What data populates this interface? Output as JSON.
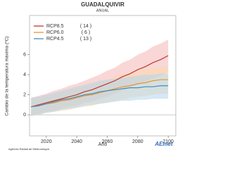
{
  "chart_data": {
    "type": "line",
    "title": "GUADALQUIVIR",
    "subtitle": "ANUAL",
    "x_label": "Año",
    "y_label": "Cambio de la temperatura máxima (ºC)",
    "x": [
      2010,
      2015,
      2020,
      2025,
      2030,
      2035,
      2040,
      2045,
      2050,
      2055,
      2060,
      2065,
      2070,
      2075,
      2080,
      2085,
      2090,
      2095,
      2100
    ],
    "series": [
      {
        "name": "RCP8.5",
        "count_label": "( 14 )",
        "color": "#c0392b",
        "band_color": "#f4b6b6",
        "values": [
          0.8,
          1.0,
          1.2,
          1.4,
          1.6,
          1.8,
          2.0,
          2.3,
          2.5,
          2.8,
          3.1,
          3.4,
          3.8,
          4.1,
          4.5,
          4.8,
          5.2,
          5.5,
          5.9
        ],
        "low": [
          -0.1,
          0.1,
          0.3,
          0.4,
          0.6,
          0.8,
          0.9,
          1.2,
          1.3,
          1.6,
          1.8,
          2.1,
          2.4,
          2.7,
          3.0,
          3.3,
          3.6,
          3.9,
          4.2
        ],
        "high": [
          1.7,
          1.9,
          2.1,
          2.4,
          2.6,
          2.9,
          3.1,
          3.4,
          3.7,
          4.0,
          4.4,
          4.7,
          5.2,
          5.5,
          6.0,
          6.3,
          6.8,
          7.1,
          7.5
        ]
      },
      {
        "name": "RCP6.0",
        "count_label": "( 6 )",
        "color": "#e6962e",
        "band_color": "#f9d9a8",
        "values": [
          0.8,
          0.9,
          1.1,
          1.2,
          1.4,
          1.5,
          1.7,
          1.9,
          2.0,
          2.2,
          2.4,
          2.6,
          2.8,
          2.9,
          3.1,
          3.2,
          3.4,
          3.5,
          3.5
        ],
        "low": [
          -0.1,
          0.0,
          0.2,
          0.3,
          0.4,
          0.5,
          0.7,
          0.8,
          0.9,
          1.1,
          1.2,
          1.4,
          1.5,
          1.7,
          1.8,
          1.9,
          2.0,
          2.1,
          2.1
        ],
        "high": [
          1.7,
          1.8,
          2.0,
          2.1,
          2.3,
          2.5,
          2.7,
          2.9,
          3.1,
          3.3,
          3.5,
          3.8,
          4.0,
          4.1,
          4.3,
          4.5,
          4.6,
          4.7,
          4.8
        ]
      },
      {
        "name": "RCP4.5",
        "count_label": "( 13 )",
        "color": "#3f8fc0",
        "band_color": "#b5d6ec",
        "values": [
          0.8,
          0.9,
          1.1,
          1.3,
          1.5,
          1.6,
          1.8,
          2.0,
          2.1,
          2.3,
          2.4,
          2.5,
          2.6,
          2.7,
          2.7,
          2.8,
          2.8,
          2.9,
          2.9
        ],
        "low": [
          -0.1,
          0.0,
          0.2,
          0.3,
          0.5,
          0.6,
          0.7,
          0.9,
          1.0,
          1.1,
          1.2,
          1.3,
          1.4,
          1.4,
          1.5,
          1.5,
          1.6,
          1.6,
          1.6
        ],
        "high": [
          1.7,
          1.8,
          2.0,
          2.2,
          2.4,
          2.6,
          2.8,
          3.0,
          3.2,
          3.4,
          3.5,
          3.6,
          3.7,
          3.8,
          3.9,
          4.0,
          4.0,
          4.1,
          4.1
        ]
      }
    ],
    "xlim": [
      2009,
      2105
    ],
    "xticks": [
      2020,
      2040,
      2060,
      2080,
      2100
    ],
    "ylim": [
      -2.1,
      9.9
    ],
    "yticks": [
      0,
      2,
      4,
      6
    ],
    "zero_line": true,
    "legend": "upper left",
    "footer": "Agencia Estatal de Meteorología",
    "logo": "AEmet"
  }
}
